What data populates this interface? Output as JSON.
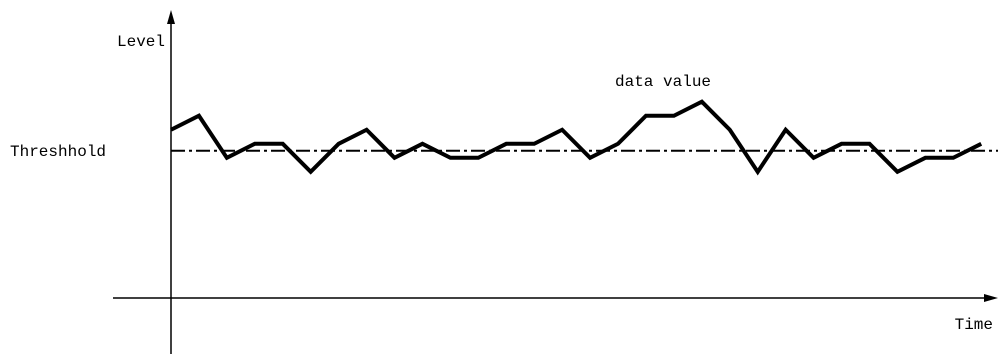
{
  "chart_data": {
    "type": "line",
    "x_label": "Time",
    "y_label": "Level",
    "annotation": "data value",
    "threshold": {
      "label": "Threshhold",
      "value": 10.5
    },
    "x": [
      0,
      1,
      2,
      3,
      4,
      5,
      6,
      7,
      8,
      9,
      10,
      11,
      12,
      13,
      14,
      15,
      16,
      17,
      18,
      19,
      20,
      21,
      22,
      23,
      24,
      25,
      26,
      27,
      28,
      29
    ],
    "series": [
      {
        "name": "data value",
        "color": "#000000",
        "values": [
          12,
          13,
          10,
          11,
          11,
          9,
          11,
          12,
          10,
          11,
          10,
          10,
          11,
          11,
          12,
          10,
          11,
          13,
          13,
          14,
          12,
          9,
          12,
          10,
          11,
          11,
          9,
          10,
          10,
          11
        ]
      }
    ],
    "xlim": [
      0,
      29.6
    ],
    "ylim": [
      0,
      20.4
    ]
  }
}
